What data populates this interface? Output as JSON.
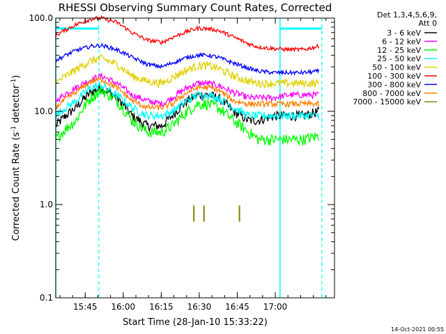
{
  "chart_data": {
    "type": "line",
    "title": "RHESSI Observing Summary Count Rates, Corrected",
    "xlabel": "Start Time (28-Jan-10 15:33:22)",
    "ylabel_main": "Corrected Count Rate (s",
    "ylabel_exp1": "-1",
    "ylabel_mid": " detector",
    "ylabel_exp2": "-1",
    "ylabel_end": ")",
    "yscale": "log",
    "ylim": [
      0.1,
      100.0
    ],
    "xlim_minutes": [
      0,
      110
    ],
    "x_start": "15:33:22",
    "x_ticks": [
      {
        "label": "15:45",
        "min": 11.63
      },
      {
        "label": "16:00",
        "min": 26.63
      },
      {
        "label": "16:15",
        "min": 41.63
      },
      {
        "label": "16:30",
        "min": 56.63
      },
      {
        "label": "16:45",
        "min": 71.63
      },
      {
        "label": "17:00",
        "min": 86.63
      }
    ],
    "y_ticks": [
      {
        "label": "0.1",
        "v": 0.1
      },
      {
        "label": "1.0",
        "v": 1.0
      },
      {
        "label": "10.0",
        "v": 10.0
      },
      {
        "label": "100.0",
        "v": 100.0
      }
    ],
    "legend": {
      "header1": "Det 1,3,4,5,6,9,",
      "header2": "Att 0",
      "position": "right"
    },
    "series": [
      {
        "name": "3 - 6 keV",
        "color": "#000000",
        "x": [
          0,
          8,
          14,
          18,
          24,
          30,
          36,
          42,
          46,
          52,
          56,
          60,
          64,
          70,
          76,
          80,
          86,
          92,
          98,
          104
        ],
        "y": [
          7,
          11,
          16,
          18,
          14,
          9,
          7,
          7,
          9,
          13,
          15,
          15,
          14,
          10,
          8,
          8,
          9,
          9,
          9,
          10
        ]
      },
      {
        "name": "6 - 12 keV",
        "color": "#ff00ff",
        "x": [
          0,
          8,
          14,
          18,
          24,
          30,
          36,
          42,
          46,
          52,
          56,
          60,
          64,
          70,
          76,
          80,
          86,
          92,
          98,
          104
        ],
        "y": [
          13,
          18,
          22,
          24,
          20,
          15,
          13,
          12,
          14,
          18,
          20,
          20,
          19,
          16,
          14,
          14,
          14,
          15,
          15,
          15
        ]
      },
      {
        "name": "12 - 25 keV",
        "color": "#00ff00",
        "x": [
          0,
          8,
          14,
          18,
          24,
          30,
          36,
          42,
          46,
          52,
          56,
          60,
          64,
          70,
          76,
          80,
          86,
          92,
          98,
          104
        ],
        "y": [
          5,
          8,
          14,
          17,
          13,
          8,
          6,
          6,
          7,
          10,
          12,
          12,
          11,
          8,
          6,
          5,
          5,
          5,
          5,
          5.5
        ]
      },
      {
        "name": "25 - 50 keV",
        "color": "#00ffff",
        "x": [
          0,
          8,
          14,
          18,
          24,
          30,
          36,
          42,
          46,
          52,
          56,
          60,
          64,
          70,
          76,
          80,
          86,
          92,
          98,
          104
        ],
        "y": [
          9,
          13,
          18,
          19,
          15,
          11,
          9,
          9,
          10,
          13,
          15,
          15,
          14,
          11,
          9,
          9,
          9,
          9,
          9,
          9
        ]
      },
      {
        "name": "50 - 100 keV",
        "color": "#e0d000",
        "x": [
          0,
          8,
          14,
          18,
          24,
          30,
          36,
          42,
          46,
          52,
          56,
          60,
          64,
          70,
          76,
          80,
          86,
          92,
          98,
          104
        ],
        "y": [
          20,
          28,
          35,
          37,
          32,
          24,
          21,
          20,
          23,
          28,
          31,
          31,
          29,
          24,
          21,
          20,
          20,
          20,
          20,
          20
        ]
      },
      {
        "name": "100 - 300 keV",
        "color": "#ff0000",
        "x": [
          0,
          8,
          14,
          18,
          24,
          30,
          36,
          42,
          46,
          52,
          56,
          60,
          64,
          70,
          76,
          80,
          86,
          92,
          98,
          104
        ],
        "y": [
          65,
          85,
          98,
          100,
          90,
          70,
          58,
          55,
          62,
          72,
          78,
          77,
          74,
          63,
          53,
          49,
          47,
          46,
          46,
          50
        ]
      },
      {
        "name": "300 - 800 keV",
        "color": "#0000ff",
        "x": [
          0,
          8,
          14,
          18,
          24,
          30,
          36,
          42,
          46,
          52,
          56,
          60,
          64,
          70,
          76,
          80,
          86,
          92,
          98,
          104
        ],
        "y": [
          35,
          45,
          50,
          51,
          46,
          38,
          32,
          30,
          33,
          38,
          40,
          40,
          38,
          33,
          29,
          27,
          26,
          26,
          26,
          27
        ]
      },
      {
        "name": "800 - 7000 keV",
        "color": "#ff8000",
        "x": [
          0,
          8,
          14,
          18,
          24,
          30,
          36,
          42,
          46,
          52,
          56,
          60,
          64,
          70,
          76,
          80,
          86,
          92,
          98,
          104
        ],
        "y": [
          11,
          16,
          21,
          22,
          18,
          13,
          11,
          11,
          12,
          16,
          18,
          18,
          17,
          13,
          12,
          12,
          12,
          12,
          12,
          12
        ]
      },
      {
        "name": "7000 - 15000 keV",
        "color": "#808000",
        "x": [
          54.5,
          58.5,
          72.5
        ],
        "y": [
          0.8,
          0.8,
          0.8
        ]
      }
    ],
    "markers": {
      "color": "#00ffff",
      "solid_min": [
        0,
        88.5
      ],
      "dashed_min": [
        17,
        105
      ],
      "bars": [
        [
          0,
          17
        ],
        [
          88.5,
          105
        ]
      ]
    },
    "grid": false
  },
  "footer": {
    "timestamp": "14-Oct-2021 00:55"
  }
}
